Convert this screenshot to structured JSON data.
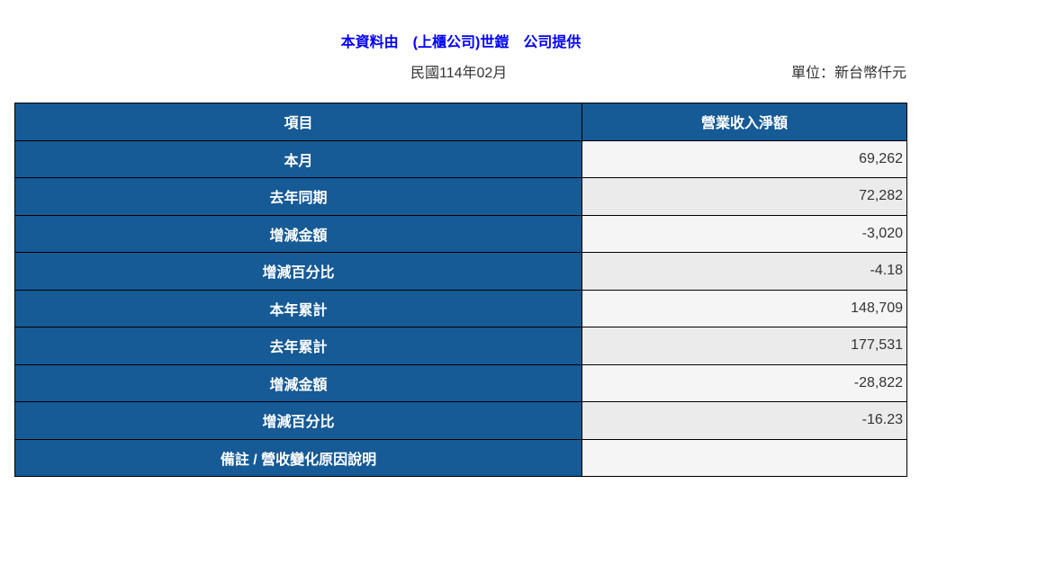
{
  "title": "本資料由　(上櫃公司)世鎧　公司提供",
  "period": "民國114年02月",
  "unit": "單位：新台幣仟元",
  "table": {
    "headers": [
      "項目",
      "營業收入淨額"
    ],
    "rows": [
      {
        "label": "本月",
        "value": "69,262"
      },
      {
        "label": "去年同期",
        "value": "72,282"
      },
      {
        "label": "增減金額",
        "value": "-3,020"
      },
      {
        "label": "增減百分比",
        "value": "-4.18"
      },
      {
        "label": "本年累計",
        "value": "148,709"
      },
      {
        "label": "去年累計",
        "value": "177,531"
      },
      {
        "label": "增減金額",
        "value": "-28,822"
      },
      {
        "label": "增減百分比",
        "value": "-16.23"
      },
      {
        "label": "備註 / 營收變化原因說明",
        "value": ""
      }
    ]
  },
  "colors": {
    "header_bg": "#165a96",
    "title": "#0000ff"
  }
}
